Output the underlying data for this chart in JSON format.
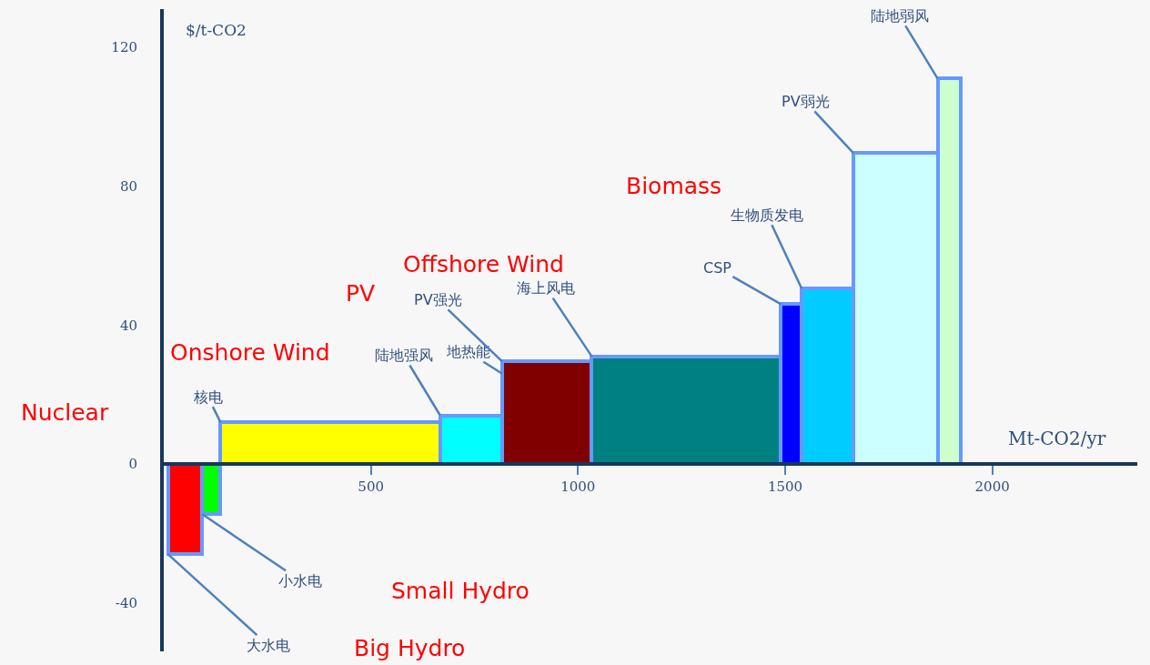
{
  "chart_data": {
    "type": "histogram",
    "bins": [
      10,
      93,
      137,
      667,
      817,
      1033,
      1490,
      1540,
      1665,
      1868,
      1925
    ],
    "values": [
      -26,
      -14.5,
      12,
      14,
      29.5,
      31,
      46,
      50.5,
      89.5,
      111
    ],
    "colors": [
      "#ff0000",
      "#00ff00",
      "#ffff00",
      "#00ffff",
      "#800000",
      "#008080",
      "#0000ff",
      "#00ccff",
      "#ccffff",
      "#ccffcc"
    ],
    "xlabel": "Mt-CO2/yr",
    "ylabel": "$/t-CO2",
    "xlim": [
      0,
      2350
    ],
    "ylim": [
      -54,
      131
    ],
    "xticks": [
      500,
      1000,
      1500,
      2000
    ],
    "yticks": [
      -40,
      0,
      40,
      80,
      120
    ],
    "grid": false,
    "legend": false,
    "annotations": [
      {
        "text": "大水电",
        "x": 10,
        "y": -26
      },
      {
        "text": "小水电",
        "x": 93,
        "y": -14.5
      },
      {
        "text": "核电",
        "x": 137,
        "y": 12
      },
      {
        "text": "陆地强风",
        "x": 667,
        "y": 14
      },
      {
        "text": "地热能",
        "x": 817,
        "y": 26
      },
      {
        "text": "PV强光",
        "x": 817,
        "y": 29.5
      },
      {
        "text": "海上风电",
        "x": 1033,
        "y": 31
      },
      {
        "text": "CSP",
        "x": 1490,
        "y": 46
      },
      {
        "text": "生物质发电",
        "x": 1540,
        "y": 50.5
      },
      {
        "text": "PV弱光",
        "x": 1665,
        "y": 89.5
      },
      {
        "text": "陆地弱风",
        "x": 1868,
        "y": 111
      },
      "Nuclear",
      "Onshore Wind",
      "PV",
      "Offshore Wind",
      "Biomass",
      "Small Hydro",
      "Big Hydro"
    ]
  }
}
